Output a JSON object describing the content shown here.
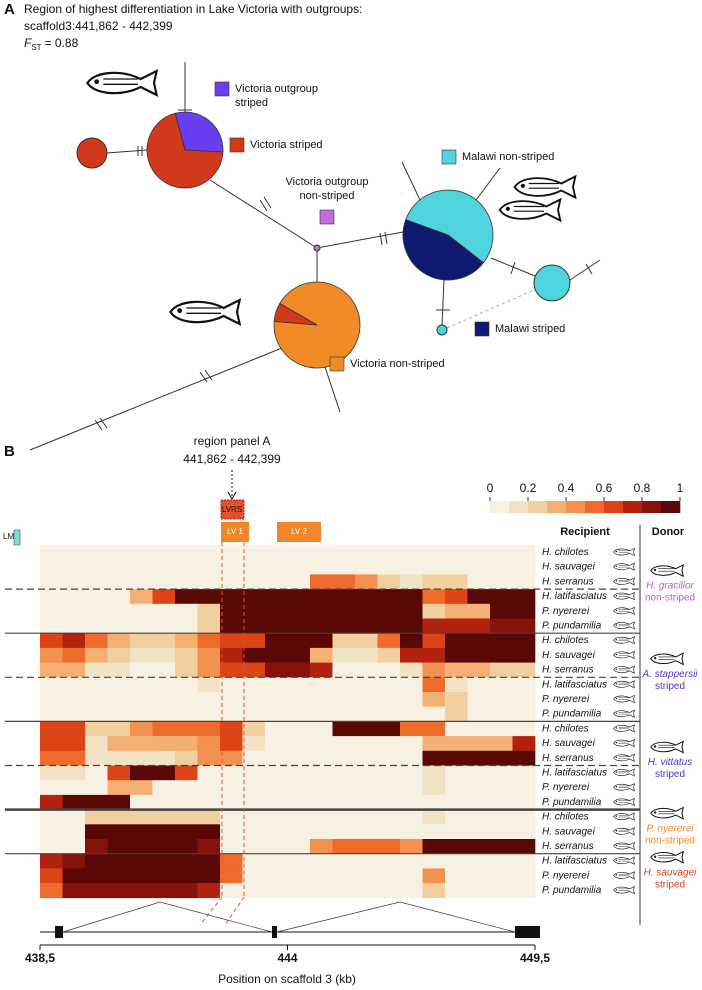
{
  "panel_a": {
    "label": "A",
    "title": [
      "Region of highest differentiation in Lake Victoria with outgroups:",
      "scaffold3:441,862 - 442,399"
    ],
    "fst": {
      "symbol": "F",
      "subscript": "ST",
      "value": "= 0.88"
    },
    "legend": [
      {
        "label": [
          "Victoria outgroup",
          "striped"
        ],
        "color": "#6a3ef0"
      },
      {
        "label": [
          "Victoria striped"
        ],
        "color": "#d2381a"
      },
      {
        "label": [
          "Malawi non-striped"
        ],
        "color": "#4fd3dc"
      },
      {
        "label": [
          "Victoria outgroup",
          "non-striped"
        ],
        "color": "#c36ce0"
      },
      {
        "label": [
          "Malawi striped"
        ],
        "color": "#101a70"
      },
      {
        "label": [
          "Victoria non-striped"
        ],
        "color": "#f28a28"
      }
    ],
    "haplotypes": [
      {
        "values": [
          30,
          70
        ],
        "colors": [
          "#6a3ef0",
          "#d2381a"
        ]
      },
      {
        "values": [
          100
        ],
        "colors": [
          "#d2381a"
        ]
      },
      {
        "values": [
          55,
          45
        ],
        "colors": [
          "#4fd3dc",
          "#101a70"
        ]
      },
      {
        "values": [
          100
        ],
        "colors": [
          "#4fd3dc"
        ]
      },
      {
        "values": [
          93,
          7
        ],
        "colors": [
          "#f28a28",
          "#d2381a"
        ]
      },
      {
        "values": [
          100
        ],
        "colors": [
          "#4fd3dc"
        ]
      }
    ]
  },
  "panel_b": {
    "label": "B",
    "region_label": "region panel A",
    "region_range": "441,862 - 442,399",
    "regions": [
      "LM",
      "LVRS",
      "LV 1",
      "LV 2"
    ],
    "recipient_header": "Recipient",
    "donor_header": "Donor",
    "colorbar": {
      "ticks": [
        0,
        0.2,
        0.4,
        0.6,
        0.8,
        1
      ],
      "clim": [
        0,
        1
      ],
      "colors": [
        "#f7f1e3",
        "#f3e3c5",
        "#f2cf9e",
        "#f4b072",
        "#f39150",
        "#ee6b2c",
        "#dc4418",
        "#b3220e",
        "#861209",
        "#5a0806"
      ]
    },
    "xlabel": "Position on scaffold 3 (kb)",
    "xlim": [
      438.5,
      449.5
    ],
    "xticks": [
      {
        "value": 438.5,
        "label": "438,5"
      },
      444,
      {
        "value": 449.5,
        "label": "449,5"
      }
    ],
    "bins": [
      438.5,
      439,
      439.5,
      440,
      440.5,
      441,
      441.5,
      442,
      442.5,
      443,
      443.5,
      444,
      444.5,
      445,
      445.5,
      446,
      446.5,
      447,
      447.5,
      448,
      448.5,
      449,
      449.5
    ],
    "donors": [
      {
        "name": "H. gracilior",
        "label": "non-striped",
        "color": "#b25fd8"
      },
      {
        "name": "A. stappersii",
        "label": "striped",
        "color": "#5530d0"
      },
      {
        "name": "H. vittatus",
        "label": "striped",
        "color": "#5530d0"
      },
      {
        "name": "P. nyererei",
        "label": "non-striped",
        "color": "#f08c28"
      },
      {
        "name": "H. sauvagei",
        "label": "striped",
        "color": "#d8401a"
      }
    ],
    "rows": [
      {
        "recipient": "H. chilotes",
        "values": [
          0.05,
          0.05,
          0.05,
          0.05,
          0.05,
          0.05,
          0.05,
          0.05,
          0.05,
          0.05,
          0.05,
          0.05,
          0.05,
          0.05,
          0.05,
          0.05,
          0.05,
          0.05,
          0.05,
          0.05,
          0.05,
          0.05
        ]
      },
      {
        "recipient": "H. sauvagei",
        "values": [
          0.05,
          0.05,
          0.05,
          0.05,
          0.05,
          0.05,
          0.05,
          0.05,
          0.05,
          0.05,
          0.05,
          0.05,
          0.05,
          0.05,
          0.05,
          0.05,
          0.05,
          0.05,
          0.05,
          0.05,
          0.05,
          0.05
        ]
      },
      {
        "recipient": "H. serranus",
        "values": [
          0.05,
          0.05,
          0.05,
          0.05,
          0.05,
          0.05,
          0.05,
          0.05,
          0.05,
          0.05,
          0.05,
          0.05,
          0.5,
          0.5,
          0.4,
          0.2,
          0.1,
          0.2,
          0.2,
          0.05,
          0.05,
          0.05
        ]
      },
      {
        "recipient": "H. latifasciatus",
        "values": [
          0.05,
          0.05,
          0.05,
          0.05,
          0.3,
          0.6,
          0.9,
          1,
          1,
          1,
          1,
          1,
          1,
          1,
          1,
          1,
          1,
          0.5,
          0.6,
          0.9,
          0.9,
          0.9
        ]
      },
      {
        "recipient": "P. nyererei",
        "values": [
          0.05,
          0.05,
          0.05,
          0.05,
          0.05,
          0.05,
          0.05,
          0.2,
          0.95,
          0.95,
          0.95,
          0.95,
          0.95,
          0.95,
          0.95,
          0.95,
          0.95,
          0.2,
          0.3,
          0.3,
          0.9,
          0.95
        ]
      },
      {
        "recipient": "P. pundamilia",
        "values": [
          0.05,
          0.05,
          0.05,
          0.05,
          0.05,
          0.05,
          0.05,
          0.2,
          1,
          1,
          1,
          1,
          1,
          1,
          1,
          1,
          1,
          0.7,
          0.7,
          0.7,
          0.8,
          0.8
        ]
      },
      {
        "recipient": "H. chilotes",
        "values": [
          0.6,
          0.7,
          0.5,
          0.3,
          0.2,
          0.2,
          0.3,
          0.5,
          0.6,
          0.6,
          1,
          1,
          0.95,
          0.2,
          0.2,
          0.5,
          0.9,
          0.6,
          0.9,
          1,
          1,
          1
        ]
      },
      {
        "recipient": "H. sauvagei",
        "values": [
          0.4,
          0.5,
          0.3,
          0.2,
          0.1,
          0.1,
          0.2,
          0.4,
          0.7,
          1,
          1,
          1,
          0.3,
          0.1,
          0.1,
          0.2,
          0.7,
          0.7,
          0.9,
          0.9,
          0.9,
          0.9
        ]
      },
      {
        "recipient": "H. serranus",
        "values": [
          0.3,
          0.3,
          0.1,
          0.1,
          0.05,
          0.05,
          0.2,
          0.4,
          0.6,
          0.6,
          0.8,
          0.85,
          0.7,
          0.05,
          0.05,
          0.05,
          0.1,
          0.4,
          0.3,
          0.3,
          0.2,
          0.2
        ]
      },
      {
        "recipient": "H. latifasciatus",
        "values": [
          0.05,
          0.05,
          0.05,
          0.05,
          0.05,
          0.05,
          0.05,
          0.1,
          0.05,
          0.05,
          0.05,
          0.05,
          0.05,
          0.05,
          0.05,
          0.05,
          0.05,
          0.5,
          0.1,
          0.05,
          0.05,
          0.05
        ]
      },
      {
        "recipient": "P. nyererei",
        "values": [
          0.05,
          0.05,
          0.05,
          0.05,
          0.05,
          0.05,
          0.05,
          0.05,
          0.05,
          0.05,
          0.05,
          0.05,
          0.05,
          0.05,
          0.05,
          0.05,
          0.05,
          0.3,
          0.2,
          0.05,
          0.05,
          0.05
        ]
      },
      {
        "recipient": "P. pundamilia",
        "values": [
          0.05,
          0.05,
          0.05,
          0.05,
          0.05,
          0.05,
          0.05,
          0.05,
          0.05,
          0.05,
          0.05,
          0.05,
          0.05,
          0.05,
          0.05,
          0.05,
          0.05,
          0.05,
          0.2,
          0.05,
          0.05,
          0.05
        ]
      },
      {
        "recipient": "H. chilotes",
        "values": [
          0.6,
          0.6,
          0.2,
          0.2,
          0.4,
          0.5,
          0.5,
          0.5,
          0.6,
          0.2,
          0.05,
          0.05,
          0.05,
          1,
          1,
          1,
          0.5,
          0.5,
          0.05,
          0.05,
          0.05,
          0.05
        ]
      },
      {
        "recipient": "H. sauvagei",
        "values": [
          0.6,
          0.6,
          0.1,
          0.3,
          0.3,
          0.3,
          0.3,
          0.4,
          0.6,
          0.1,
          0.05,
          0.05,
          0.05,
          0.05,
          0.05,
          0.05,
          0.05,
          0.3,
          0.3,
          0.3,
          0.3,
          0.7
        ]
      },
      {
        "recipient": "H. serranus",
        "values": [
          0.5,
          0.5,
          0.1,
          0.1,
          0.1,
          0.1,
          0.2,
          0.4,
          0.4,
          0.05,
          0.05,
          0.05,
          0.05,
          0.05,
          0.05,
          0.05,
          0.05,
          0.95,
          0.95,
          0.95,
          0.95,
          0.95
        ]
      },
      {
        "recipient": "H. latifasciatus",
        "values": [
          0.1,
          0.1,
          0.05,
          0.6,
          1,
          1,
          0.6,
          0.05,
          0.05,
          0.05,
          0.05,
          0.05,
          0.05,
          0.05,
          0.05,
          0.05,
          0.05,
          0.1,
          0.05,
          0.05,
          0.05,
          0.05
        ]
      },
      {
        "recipient": "P. nyererei",
        "values": [
          0.05,
          0.05,
          0.05,
          0.3,
          0.3,
          0.05,
          0.05,
          0.05,
          0.05,
          0.05,
          0.05,
          0.05,
          0.05,
          0.05,
          0.05,
          0.05,
          0.05,
          0.1,
          0.05,
          0.05,
          0.05,
          0.05
        ]
      },
      {
        "recipient": "P. pundamilia",
        "values": [
          0.7,
          1,
          1,
          1,
          0.05,
          0.05,
          0.05,
          0.05,
          0.05,
          0.05,
          0.05,
          0.05,
          0.05,
          0.05,
          0.05,
          0.05,
          0.05,
          0.05,
          0.05,
          0.05,
          0.05,
          0.05
        ]
      },
      {
        "recipient": "H. chilotes",
        "values": [
          0.05,
          0.05,
          0.2,
          0.2,
          0.2,
          0.2,
          0.2,
          0.2,
          0.05,
          0.05,
          0.05,
          0.05,
          0.05,
          0.05,
          0.05,
          0.05,
          0.05,
          0.1,
          0.05,
          0.05,
          0.05,
          0.05
        ]
      },
      {
        "recipient": "H. sauvagei",
        "values": [
          0.05,
          0.05,
          0.9,
          1,
          1,
          1,
          1,
          0.9,
          0.05,
          0.05,
          0.05,
          0.05,
          0.05,
          0.05,
          0.05,
          0.05,
          0.05,
          0.05,
          0.05,
          0.05,
          0.05,
          0.05
        ]
      },
      {
        "recipient": "H. serranus",
        "values": [
          0.05,
          0.05,
          0.8,
          0.9,
          0.9,
          0.9,
          0.9,
          0.8,
          0.05,
          0.05,
          0.05,
          0.05,
          0.4,
          0.5,
          0.5,
          0.5,
          0.4,
          1,
          1,
          1,
          1,
          1
        ]
      },
      {
        "recipient": "H. latifasciatus",
        "values": [
          0.7,
          0.8,
          1,
          1,
          1,
          1,
          1,
          1,
          0.5,
          0.05,
          0.05,
          0.05,
          0.05,
          0.05,
          0.05,
          0.05,
          0.05,
          0.05,
          0.05,
          0.05,
          0.05,
          0.05
        ]
      },
      {
        "recipient": "P. nyererei",
        "values": [
          0.6,
          1,
          0.9,
          0.9,
          0.9,
          0.9,
          0.9,
          0.9,
          0.5,
          0.05,
          0.05,
          0.05,
          0.05,
          0.05,
          0.05,
          0.05,
          0.05,
          0.4,
          0.05,
          0.05,
          0.05,
          0.05
        ]
      },
      {
        "recipient": "P. pundamilia",
        "values": [
          0.5,
          0.8,
          0.8,
          0.8,
          0.8,
          0.8,
          0.8,
          0.7,
          0.05,
          0.05,
          0.05,
          0.05,
          0.05,
          0.05,
          0.05,
          0.05,
          0.05,
          0.2,
          0.05,
          0.05,
          0.05,
          0.05
        ]
      }
    ]
  }
}
